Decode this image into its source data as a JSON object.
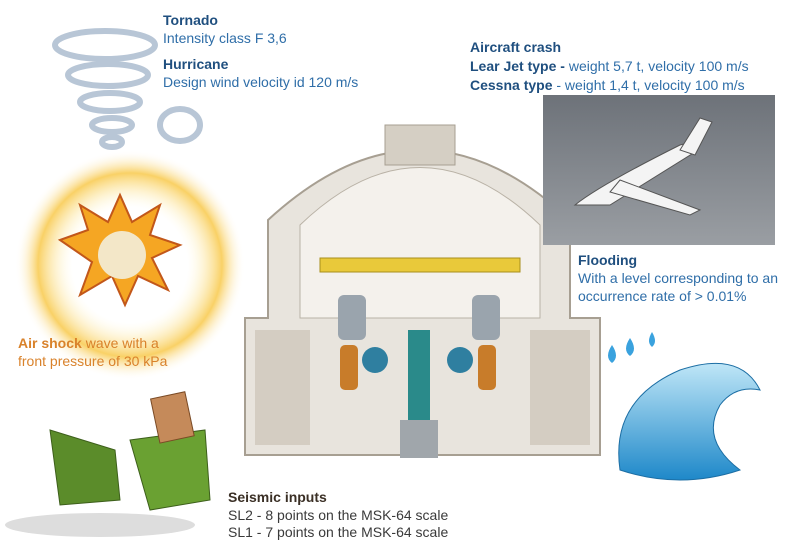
{
  "tornado": {
    "title": "Tornado",
    "text": "Intensity class F 3,6"
  },
  "hurricane": {
    "title": "Hurricane",
    "text": "Design wind velocity id 120 m/s"
  },
  "aircraft_crash": {
    "title": "Aircraft crash",
    "lines": [
      {
        "label": "Lear Jet type -",
        "text": "weight 5,7 t, velocity 100 m/s"
      },
      {
        "label": "Cessna type",
        "text": "- weight 1,4 t, velocity 100 m/s"
      }
    ]
  },
  "flooding": {
    "title": "Flooding",
    "lines": [
      "With a level corresponding to an",
      "occurrence rate of > 0.01%"
    ]
  },
  "air_shock": {
    "title": "Air shock",
    "lines": [
      "wave with a",
      "front pressure of 30 kPa"
    ]
  },
  "seismic": {
    "title": "Seismic inputs",
    "lines": [
      "SL2 - 8 points on the MSK-64 scale",
      "SL1 - 7 points on the MSK-64 scale"
    ]
  }
}
